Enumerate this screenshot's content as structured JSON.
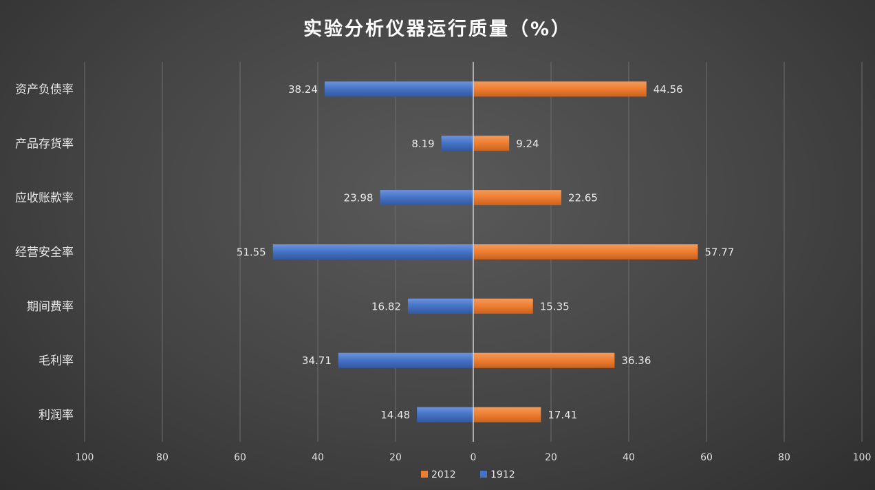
{
  "chart_data": {
    "type": "bar",
    "orientation": "horizontal",
    "layout": "butterfly",
    "title": "实验分析仪器运行质量（%）",
    "categories": [
      "资产负债率",
      "产品存货率",
      "应收账款率",
      "经营安全率",
      "期间费率",
      "毛利率",
      "利润率"
    ],
    "series": [
      {
        "name": "2012",
        "side": "right",
        "color": "#ed7d31",
        "values": [
          44.56,
          9.24,
          22.65,
          57.77,
          15.35,
          36.36,
          17.41
        ]
      },
      {
        "name": "1912",
        "side": "left",
        "color": "#4472c4",
        "values": [
          38.24,
          8.19,
          23.98,
          51.55,
          16.82,
          34.71,
          14.48
        ]
      }
    ],
    "xlim": [
      -100,
      100
    ],
    "x_ticks": [
      -100,
      -80,
      -60,
      -40,
      -20,
      0,
      20,
      40,
      60,
      80,
      100
    ],
    "x_tick_labels": [
      "100",
      "80",
      "60",
      "40",
      "20",
      "0",
      "20",
      "40",
      "60",
      "80",
      "100"
    ],
    "grid": true,
    "legend_position": "bottom",
    "data_labels": true
  }
}
